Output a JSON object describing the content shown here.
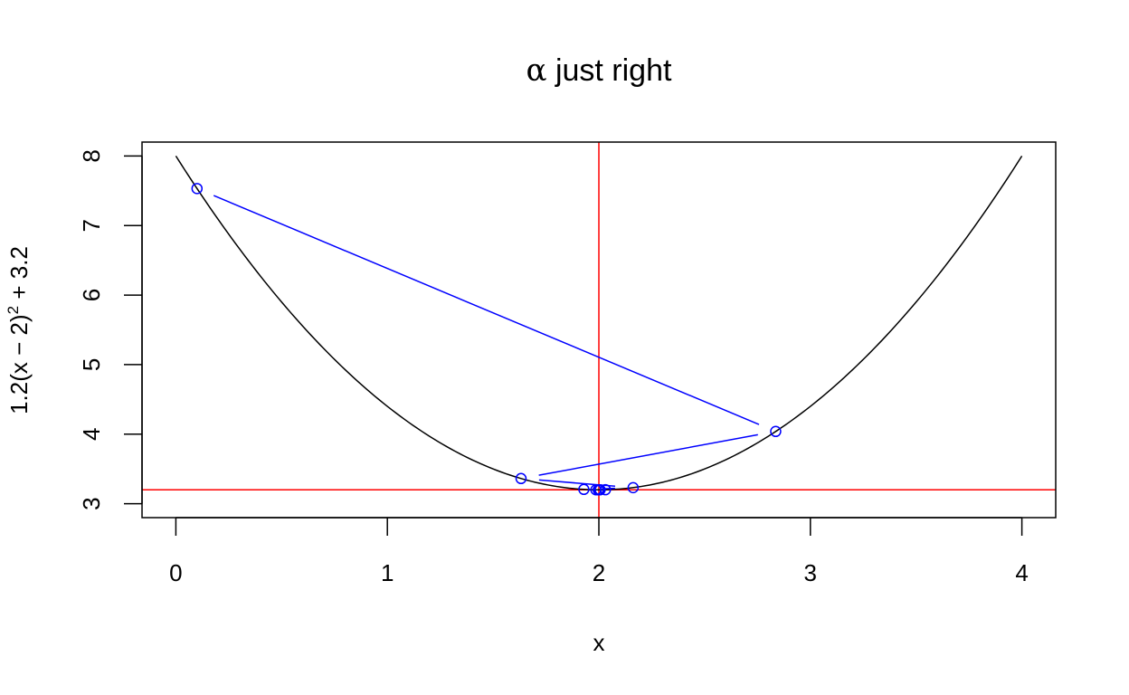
{
  "chart_data": {
    "type": "line",
    "title": "α just right",
    "title_alpha": "α",
    "title_rest": " just right",
    "xlabel": "x",
    "ylabel_parts": {
      "before": "1.2(x − 2)",
      "exponent": "2",
      "after": " + 3.2"
    },
    "xlim": [
      -0.16,
      4.16
    ],
    "ylim": [
      2.8,
      8.2
    ],
    "x_ticks": [
      0,
      1,
      2,
      3,
      4
    ],
    "x_tick_labels": [
      "0",
      "1",
      "2",
      "3",
      "4"
    ],
    "y_ticks": [
      3,
      4,
      5,
      6,
      7,
      8
    ],
    "y_tick_labels": [
      "3",
      "4",
      "5",
      "6",
      "7",
      "8"
    ],
    "curve": {
      "function": "1.2*(x-2)^2+3.2",
      "x_range": [
        0,
        4
      ],
      "color": "#000000"
    },
    "reference_lines": {
      "vertical_x": 2,
      "horizontal_y": 3.2,
      "color": "#ff0000"
    },
    "iterates": {
      "color": "#0000ff",
      "points": [
        {
          "x": 0.1,
          "y": 7.532
        },
        {
          "x": 2.836,
          "y": 4.039
        },
        {
          "x": 1.632,
          "y": 3.362
        },
        {
          "x": 2.162,
          "y": 3.231
        },
        {
          "x": 1.929,
          "y": 3.206
        },
        {
          "x": 2.031,
          "y": 3.201
        },
        {
          "x": 1.986,
          "y": 3.2
        },
        {
          "x": 2.006,
          "y": 3.2
        },
        {
          "x": 1.997,
          "y": 3.2
        },
        {
          "x": 2.001,
          "y": 3.2
        }
      ]
    },
    "grid": false,
    "legend": "none"
  }
}
